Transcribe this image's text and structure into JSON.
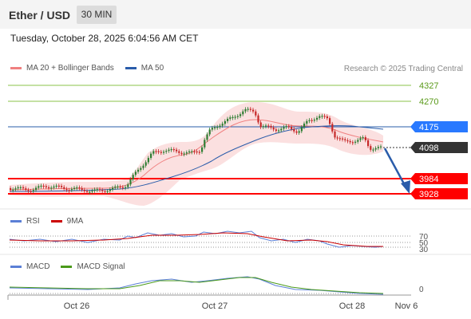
{
  "header": {
    "title": "Ether / USD",
    "interval": "30 MIN"
  },
  "datetime": "Tuesday, October 28, 2025 6:04:56 AM CET",
  "legend": {
    "ma20": "MA 20 + Bollinger Bands",
    "ma50": "MA 50",
    "research": "Research © 2025 Trading Central",
    "ma20_color": "#f08080",
    "ma50_color": "#2a5caa"
  },
  "levels": [
    {
      "value": "4327",
      "style": "green"
    },
    {
      "value": "4270",
      "style": "green"
    },
    {
      "value": "4175",
      "style": "blue"
    },
    {
      "value": "4098",
      "style": "dark"
    },
    {
      "value": "3984",
      "style": "red"
    },
    {
      "value": "3928",
      "style": "red"
    }
  ],
  "rsi_panel": {
    "rsi_label": "RSI",
    "ma_label": "9MA",
    "rsi_color": "#5b7fd6",
    "ma_color": "#cc0000",
    "ticks": [
      "70",
      "50",
      "30"
    ]
  },
  "macd_panel": {
    "macd_label": "MACD",
    "signal_label": "MACD Signal",
    "macd_color": "#5b7fd6",
    "signal_color": "#4a9a1a",
    "tick": "0"
  },
  "x_axis": {
    "labels": [
      "Oct 26",
      "Oct 27",
      "Oct 28",
      "Nov 6"
    ]
  },
  "colors": {
    "up": "#2e7d32",
    "down": "#c62828",
    "green_level": "#8bc34a",
    "blue_level": "#2a5caa",
    "red_level": "#ff0000",
    "tag_blue": "#2979ff",
    "tag_dark": "#333333",
    "tag_red": "#ff0000"
  }
}
